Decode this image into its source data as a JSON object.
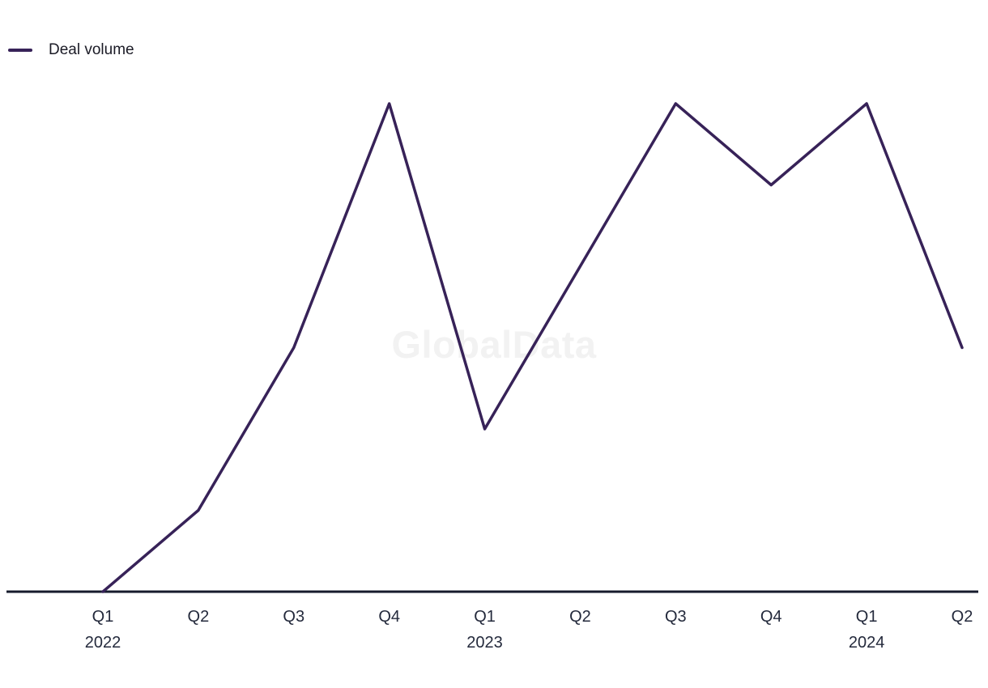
{
  "legend": {
    "label": "Deal volume"
  },
  "watermark": "GlobalData",
  "colors": {
    "line": "#372258",
    "axis": "#161b2c",
    "tick_label": "#242a3c",
    "legend_text": "#1b1b26",
    "watermark": "#f2f2f2"
  },
  "chart_data": {
    "type": "line",
    "categories": [
      {
        "label": "Q1",
        "year": "2022"
      },
      {
        "label": "Q2",
        "year": ""
      },
      {
        "label": "Q3",
        "year": ""
      },
      {
        "label": "Q4",
        "year": ""
      },
      {
        "label": "Q1",
        "year": "2023"
      },
      {
        "label": "Q2",
        "year": ""
      },
      {
        "label": "Q3",
        "year": ""
      },
      {
        "label": "Q4",
        "year": ""
      },
      {
        "label": "Q1",
        "year": "2024"
      },
      {
        "label": "Q2",
        "year": ""
      }
    ],
    "series": [
      {
        "name": "Deal volume",
        "values": [
          0,
          1,
          3,
          6,
          2,
          4,
          6,
          5,
          6,
          3
        ]
      }
    ],
    "ylim": [
      0,
      6.3
    ],
    "y_axis_visible": false,
    "grid": false,
    "legend_position": "top-left"
  }
}
